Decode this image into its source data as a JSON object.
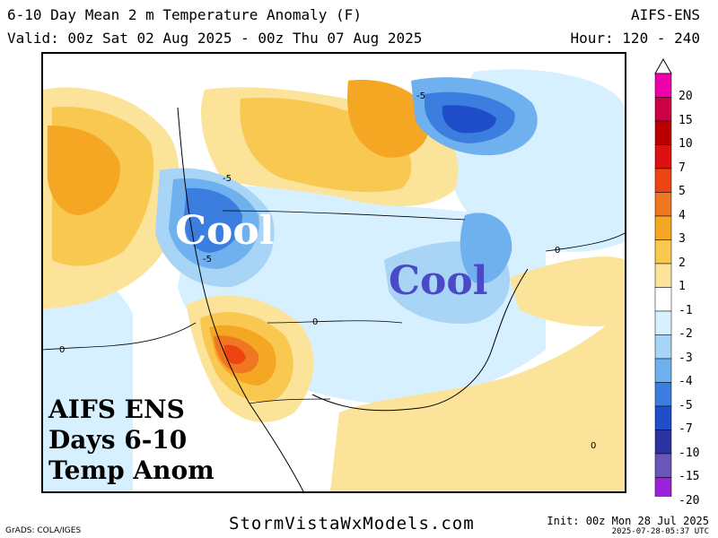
{
  "header": {
    "title": "6-10 Day Mean 2 m Temperature Anomaly (F)",
    "valid": "Valid: 00z Sat 02 Aug 2025 - 00z Thu 07 Aug 2025",
    "model": "AIFS-ENS",
    "hour": "Hour: 120 - 240"
  },
  "map": {
    "annotations": {
      "cool_west": "Cool",
      "cool_east": "Cool"
    },
    "caption": [
      "AIFS ENS",
      "Days 6-10",
      "Temp Anom"
    ],
    "contour_labels": [
      "-5",
      "-5",
      "-5",
      "0",
      "0",
      "0",
      "0"
    ]
  },
  "colorbar": {
    "levels": [
      {
        "label": "20",
        "color": "#ee00aa"
      },
      {
        "label": "15",
        "color": "#cc0044"
      },
      {
        "label": "10",
        "color": "#b80000"
      },
      {
        "label": "7",
        "color": "#dd1111"
      },
      {
        "label": "5",
        "color": "#ee4411"
      },
      {
        "label": "4",
        "color": "#f07722"
      },
      {
        "label": "3",
        "color": "#f5a623"
      },
      {
        "label": "2",
        "color": "#f8c850"
      },
      {
        "label": "1",
        "color": "#fbe39a"
      },
      {
        "label": "-1",
        "color": "#ffffff"
      },
      {
        "label": "-2",
        "color": "#d7f0ff"
      },
      {
        "label": "-3",
        "color": "#a8d4f5"
      },
      {
        "label": "-4",
        "color": "#6fb0ee"
      },
      {
        "label": "-5",
        "color": "#3c7ee0"
      },
      {
        "label": "-7",
        "color": "#1f4ec8"
      },
      {
        "label": "-10",
        "color": "#2a33a0"
      },
      {
        "label": "-15",
        "color": "#6a56b8"
      },
      {
        "label": "-20",
        "color": "#9a22d8"
      }
    ]
  },
  "footer": {
    "grads": "GrADS: COLA/IGES",
    "site": "StormVistaWxModels.com",
    "init": "Init: 00z Mon 28 Jul 2025",
    "stamp": "2025-07-28-05:37 UTC"
  }
}
